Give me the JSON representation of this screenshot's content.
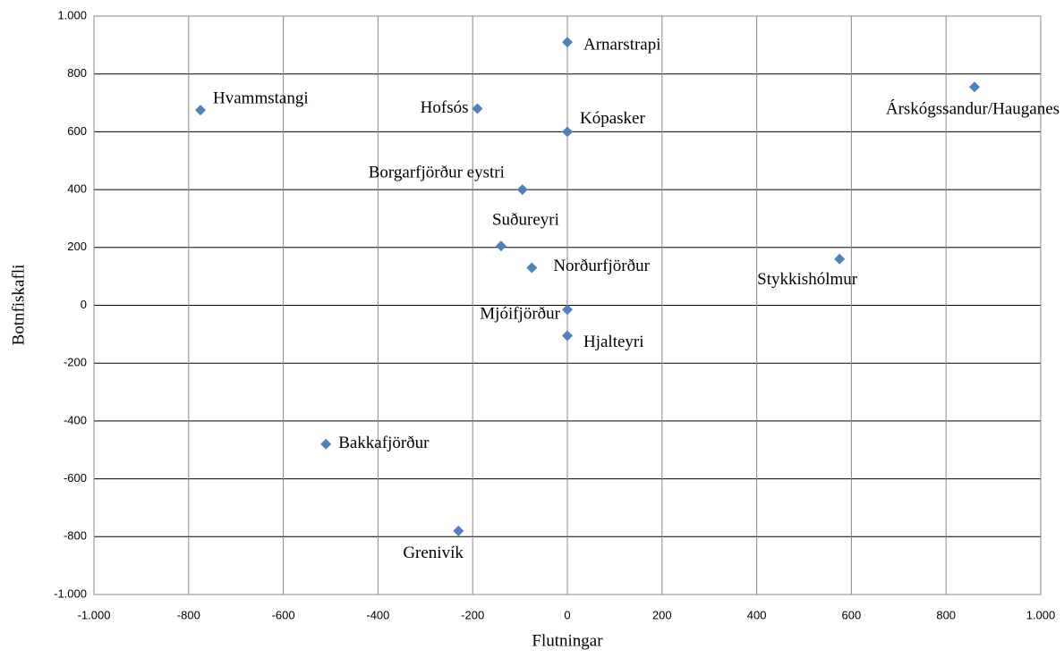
{
  "chart_data": {
    "type": "scatter",
    "x_label": "Flutningar",
    "y_label": "Botnfiskafli",
    "color": "#4f81bd",
    "grid": true,
    "xlim": [
      -1000,
      1000
    ],
    "ylim": [
      -1000,
      1000
    ],
    "xticks": [
      {
        "value": -1000,
        "label": "-1.000"
      },
      -800,
      -600,
      -400,
      -200,
      0,
      200,
      400,
      600,
      800,
      {
        "value": 1000,
        "label": "1.000"
      }
    ],
    "yticks": [
      {
        "value": -1000,
        "label": "-1.000"
      },
      -800,
      -600,
      -400,
      -200,
      0,
      200,
      400,
      600,
      800,
      {
        "value": 1000,
        "label": "1.000"
      }
    ],
    "series": [
      {
        "names": [
          "Hvammstangi",
          "Hofsós",
          "Kópasker",
          "Arnarstrapi",
          "Árskógssandur/Hauganes",
          "Borgarfjörður eystri",
          "Suðureyri",
          "Norðurfjörður",
          "Stykkishólmur",
          "Mjóifjörður",
          "Hjalteyri",
          "Bakkafjörður",
          "Grenivík"
        ],
        "x": [
          -775,
          -190,
          0,
          0,
          860,
          -95,
          -140,
          -75,
          575,
          0,
          0,
          -510,
          -230
        ],
        "values": [
          675,
          680,
          600,
          910,
          755,
          400,
          205,
          130,
          160,
          -15,
          -105,
          -480,
          -780
        ]
      }
    ]
  }
}
